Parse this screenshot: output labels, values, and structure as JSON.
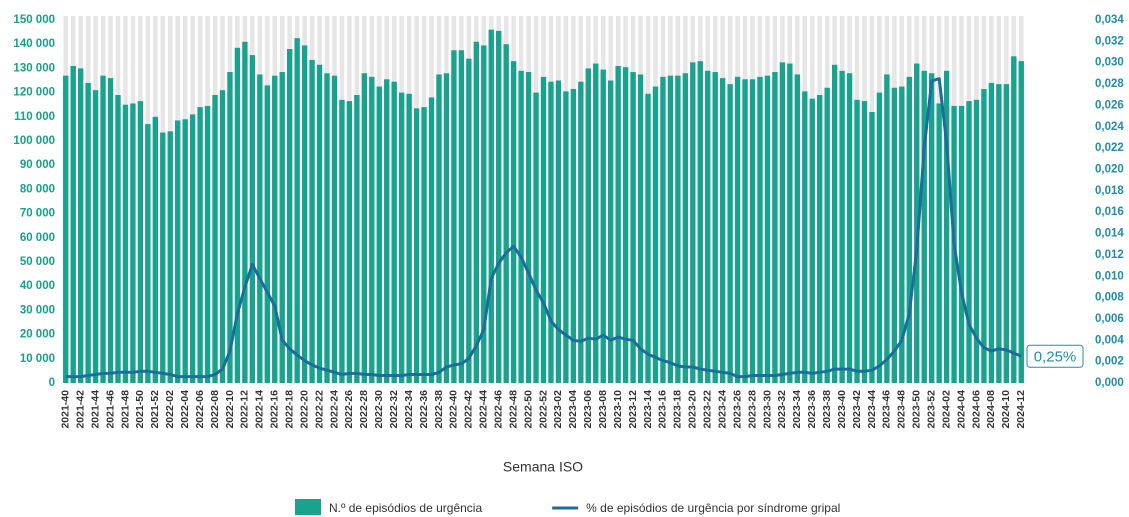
{
  "chart_data": {
    "type": "bar_line",
    "x_label": "Semana ISO",
    "categories": [
      "2021-40",
      null,
      "2021-42",
      null,
      "2021-44",
      null,
      "2021-46",
      null,
      "2021-48",
      null,
      "2021-50",
      null,
      "2021-52",
      null,
      "2022-02",
      null,
      "2022-04",
      null,
      "2022-06",
      null,
      "2022-08",
      null,
      "2022-10",
      null,
      "2022-12",
      null,
      "2022-14",
      null,
      "2022-16",
      null,
      "2022-18",
      null,
      "2022-20",
      null,
      "2022-22",
      null,
      "2022-24",
      null,
      "2022-26",
      null,
      "2022-28",
      null,
      "2022-30",
      null,
      "2022-32",
      null,
      "2022-34",
      null,
      "2022-36",
      null,
      "2022-38",
      null,
      "2022-40",
      null,
      "2022-42",
      null,
      "2022-44",
      null,
      "2022-46",
      null,
      "2022-48",
      null,
      "2022-50",
      null,
      "2022-52",
      null,
      "2023-02",
      null,
      "2023-04",
      null,
      "2023-06",
      null,
      "2023-08",
      null,
      "2023-10",
      null,
      "2023-12",
      null,
      "2023-14",
      null,
      "2023-16",
      null,
      "2023-18",
      null,
      "2023-20",
      null,
      "2023-22",
      null,
      "2023-24",
      null,
      "2023-26",
      null,
      "2023-28",
      null,
      "2023-30",
      null,
      "2023-32",
      null,
      "2023-34",
      null,
      "2023-36",
      null,
      "2023-38",
      null,
      "2023-40",
      null,
      "2023-42",
      null,
      "2023-44",
      null,
      "2023-46",
      null,
      "2023-48",
      null,
      "2023-50",
      null,
      "2023-52",
      null,
      "2024-02",
      null,
      "2024-04",
      null,
      "2024-06",
      null,
      "2024-08",
      null,
      "2024-10",
      null,
      "2024-12"
    ],
    "series": [
      {
        "name": "N.º de episódios de urgência",
        "type": "bar",
        "color": "#17a38d",
        "values": [
          127000,
          131000,
          130000,
          124000,
          121000,
          127000,
          126000,
          119000,
          115000,
          115500,
          116500,
          107000,
          110000,
          103500,
          104000,
          108500,
          109000,
          111000,
          114000,
          114500,
          119000,
          121000,
          128500,
          138500,
          141000,
          135500,
          127500,
          123000,
          127000,
          128500,
          138000,
          142500,
          139500,
          133500,
          131500,
          128000,
          127000,
          117000,
          116500,
          119000,
          128000,
          126500,
          122500,
          125500,
          124500,
          120000,
          119500,
          113500,
          114000,
          118000,
          127500,
          128000,
          137500,
          137500,
          134000,
          141000,
          139500,
          146000,
          145500,
          140000,
          133000,
          129000,
          128500,
          120000,
          126500,
          124500,
          125000,
          120500,
          121500,
          124500,
          130000,
          132000,
          129500,
          125000,
          131000,
          130500,
          128500,
          127500,
          119500,
          122500,
          126500,
          127000,
          127000,
          128000,
          132500,
          133000,
          129000,
          128500,
          126000,
          123500,
          126500,
          125500,
          125500,
          126500,
          127000,
          128500,
          132500,
          132000,
          127500,
          120500,
          117500,
          119000,
          122000,
          131500,
          129000,
          128000,
          117000,
          116500,
          112000,
          120000,
          127500,
          122000,
          122500,
          126500,
          132000,
          129000,
          128000,
          115500,
          129000,
          114500,
          114500,
          116500,
          117000,
          121500,
          124000,
          123500,
          123500,
          135000,
          133000
        ]
      },
      {
        "name": "% de episódios de urgência por síndrome gripal",
        "type": "line",
        "axis": "y2",
        "color": "#1c6c9e",
        "values": [
          0.0006,
          0.0006,
          0.0006,
          0.0007,
          0.0008,
          0.0009,
          0.0009,
          0.001,
          0.001,
          0.001,
          0.0011,
          0.0011,
          0.001,
          0.0009,
          0.0008,
          0.0006,
          0.0006,
          0.0006,
          0.0006,
          0.0006,
          0.0008,
          0.0013,
          0.003,
          0.0065,
          0.009,
          0.0111,
          0.0098,
          0.0085,
          0.0072,
          0.004,
          0.0032,
          0.0026,
          0.0021,
          0.0017,
          0.0014,
          0.0012,
          0.001,
          0.0008,
          0.0009,
          0.0009,
          0.0008,
          0.0008,
          0.0007,
          0.0007,
          0.0007,
          0.0007,
          0.0008,
          0.0008,
          0.0008,
          0.0008,
          0.001,
          0.0015,
          0.0017,
          0.0018,
          0.0023,
          0.0035,
          0.005,
          0.0098,
          0.0112,
          0.0122,
          0.0128,
          0.0118,
          0.0103,
          0.0087,
          0.0075,
          0.0058,
          0.005,
          0.0045,
          0.004,
          0.0039,
          0.0042,
          0.0041,
          0.0045,
          0.004,
          0.0043,
          0.0041,
          0.004,
          0.0032,
          0.0027,
          0.0024,
          0.0021,
          0.0019,
          0.0016,
          0.0015,
          0.0015,
          0.0013,
          0.0012,
          0.0011,
          0.001,
          0.0009,
          0.0006,
          0.0006,
          0.0007,
          0.0007,
          0.0007,
          0.0007,
          0.0008,
          0.0009,
          0.001,
          0.001,
          0.0009,
          0.001,
          0.0011,
          0.0013,
          0.0013,
          0.0013,
          0.0011,
          0.0011,
          0.0012,
          0.0016,
          0.0022,
          0.003,
          0.004,
          0.0065,
          0.0125,
          0.022,
          0.0283,
          0.0285,
          0.0225,
          0.013,
          0.0085,
          0.0055,
          0.0042,
          0.0033,
          0.003,
          0.0032,
          0.0031,
          0.0028,
          0.0025
        ]
      }
    ],
    "annotation": "0,25%",
    "ylim": [
      0,
      150000
    ],
    "yticks": [
      0,
      {
        "value": 10000,
        "label": "10 000"
      },
      {
        "value": 20000,
        "label": "20 000"
      },
      {
        "value": 30000,
        "label": "30 000"
      },
      {
        "value": 40000,
        "label": "40 000"
      },
      {
        "value": 50000,
        "label": "50 000"
      },
      {
        "value": 60000,
        "label": "60 000"
      },
      {
        "value": 70000,
        "label": "70 000"
      },
      {
        "value": 80000,
        "label": "80 000"
      },
      {
        "value": 90000,
        "label": "90 000"
      },
      {
        "value": 100000,
        "label": "100 000"
      },
      {
        "value": 110000,
        "label": "110 000"
      },
      {
        "value": 120000,
        "label": "120 000"
      },
      {
        "value": 130000,
        "label": "130 000"
      },
      {
        "value": 140000,
        "label": "140 000"
      },
      {
        "value": 150000,
        "label": "150 000"
      }
    ],
    "y2lim": [
      0,
      0.034
    ],
    "y2ticks": [
      {
        "value": 0,
        "label": "0,000"
      },
      {
        "value": 0.002,
        "label": "0,002"
      },
      {
        "value": 0.004,
        "label": "0,004"
      },
      {
        "value": 0.006,
        "label": "0,006"
      },
      {
        "value": 0.008,
        "label": "0,008"
      },
      {
        "value": 0.01,
        "label": "0,010"
      },
      {
        "value": 0.012,
        "label": "0,012"
      },
      {
        "value": 0.014,
        "label": "0,014"
      },
      {
        "value": 0.016,
        "label": "0,016"
      },
      {
        "value": 0.018,
        "label": "0,018"
      },
      {
        "value": 0.02,
        "label": "0,020"
      },
      {
        "value": 0.022,
        "label": "0,022"
      },
      {
        "value": 0.024,
        "label": "0,024"
      },
      {
        "value": 0.026,
        "label": "0,026"
      },
      {
        "value": 0.028,
        "label": "0,028"
      },
      {
        "value": 0.03,
        "label": "0,030"
      },
      {
        "value": 0.032,
        "label": "0,032"
      },
      {
        "value": 0.034,
        "label": "0,034"
      }
    ]
  }
}
